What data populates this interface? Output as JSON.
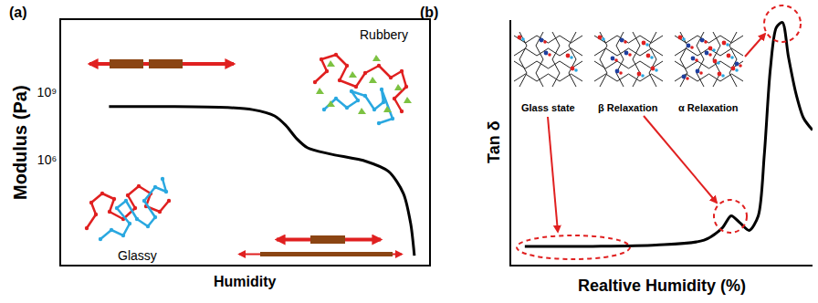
{
  "chart_data": [
    {
      "type": "line",
      "title": "(a)",
      "x_label": "Humidity",
      "y_label": "Modulus (Pa)",
      "x": [
        13,
        30,
        45,
        52,
        58,
        61,
        64,
        67,
        73,
        83,
        89,
        93,
        95,
        96
      ],
      "values": [
        230000000,
        230000000,
        210000000,
        170000000,
        90000000,
        35000000,
        9000000,
        3500000,
        1900000,
        880000,
        320000,
        35000,
        1600,
        63
      ],
      "color": "#000000",
      "log": "y",
      "grid": false,
      "tick_labels": "y",
      "xlim": [
        0,
        100
      ],
      "xticks": [],
      "ylim": [
        25,
        1500000000000
      ],
      "yticks": [
        {
          "value": 1000000000,
          "label": "10⁹"
        },
        {
          "value": 1000000,
          "label": "10⁶"
        }
      ],
      "annotations": [
        "Glassy",
        "Rubbery"
      ]
    },
    {
      "type": "line",
      "title": "(b)",
      "x_label": "Realtive Humidity (%)",
      "y_label": "Tan δ",
      "x": [
        4.5,
        27,
        48,
        64,
        70,
        73,
        76,
        79,
        82,
        84,
        86,
        88,
        90,
        92,
        94.5,
        97,
        100
      ],
      "values": [
        0.075,
        0.075,
        0.08,
        0.1,
        0.15,
        0.2,
        0.17,
        0.14,
        0.2,
        0.45,
        0.8,
        0.97,
        0.99,
        0.85,
        0.7,
        0.6,
        0.55
      ],
      "color": "#000000",
      "grid": false,
      "tick_labels": false,
      "xlim": [
        0,
        100
      ],
      "xticks": [],
      "ylim": [
        0,
        1
      ],
      "yticks": [],
      "annotations": [
        "Glass state",
        "β Relaxation",
        "α Relaxation"
      ]
    }
  ]
}
